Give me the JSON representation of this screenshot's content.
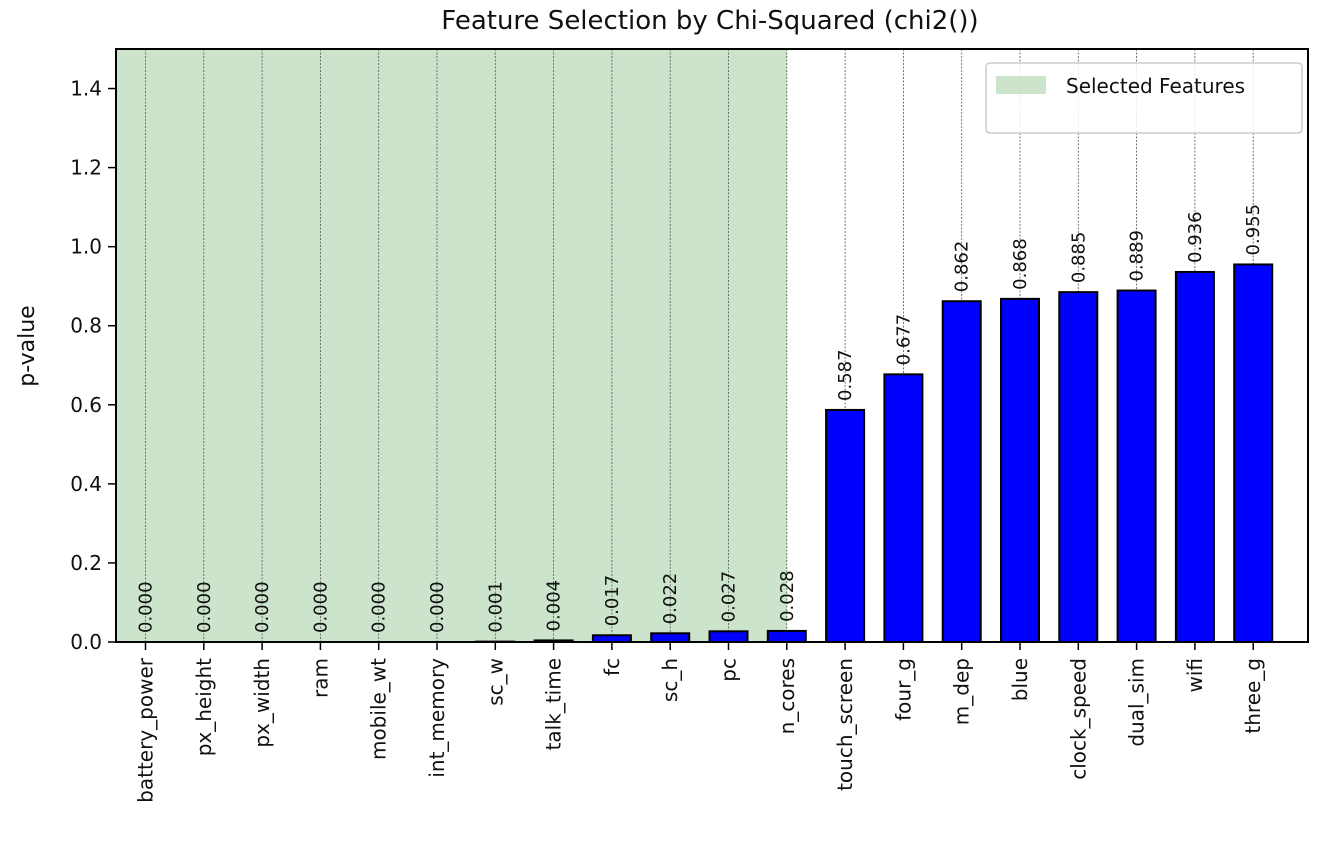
{
  "chart_data": {
    "type": "bar",
    "title": "Feature Selection by Chi-Squared (chi2())",
    "xlabel": "",
    "ylabel": "p-value",
    "ylim": [
      0,
      1.5
    ],
    "yticks": [
      0.0,
      0.2,
      0.4,
      0.6,
      0.8,
      1.0,
      1.2,
      1.4
    ],
    "ytick_labels": [
      "0.0",
      "0.2",
      "0.4",
      "0.6",
      "0.8",
      "1.0",
      "1.2",
      "1.4"
    ],
    "grid": "vertical dashed",
    "categories": [
      "battery_power",
      "px_height",
      "px_width",
      "ram",
      "mobile_wt",
      "int_memory",
      "sc_w",
      "talk_time",
      "fc",
      "sc_h",
      "pc",
      "n_cores",
      "touch_screen",
      "four_g",
      "m_dep",
      "blue",
      "clock_speed",
      "dual_sim",
      "wifi",
      "three_g"
    ],
    "values": [
      0.0,
      0.0,
      0.0,
      0.0,
      0.0,
      0.0,
      0.001,
      0.004,
      0.017,
      0.022,
      0.027,
      0.028,
      0.587,
      0.677,
      0.862,
      0.868,
      0.885,
      0.889,
      0.936,
      0.955
    ],
    "value_labels": [
      "0.000",
      "0.000",
      "0.000",
      "0.000",
      "0.000",
      "0.000",
      "0.001",
      "0.004",
      "0.017",
      "0.022",
      "0.027",
      "0.028",
      "0.587",
      "0.677",
      "0.862",
      "0.868",
      "0.885",
      "0.889",
      "0.936",
      "0.955"
    ],
    "bar_color": "#0000ff",
    "bar_edge_color": "#000000",
    "selected_region": {
      "label": "Selected Features",
      "from_category": "battery_power",
      "to_category": "n_cores",
      "color": "#cce4cc"
    },
    "legend": {
      "placement": "top-right",
      "entries": [
        "Selected Features"
      ]
    }
  }
}
